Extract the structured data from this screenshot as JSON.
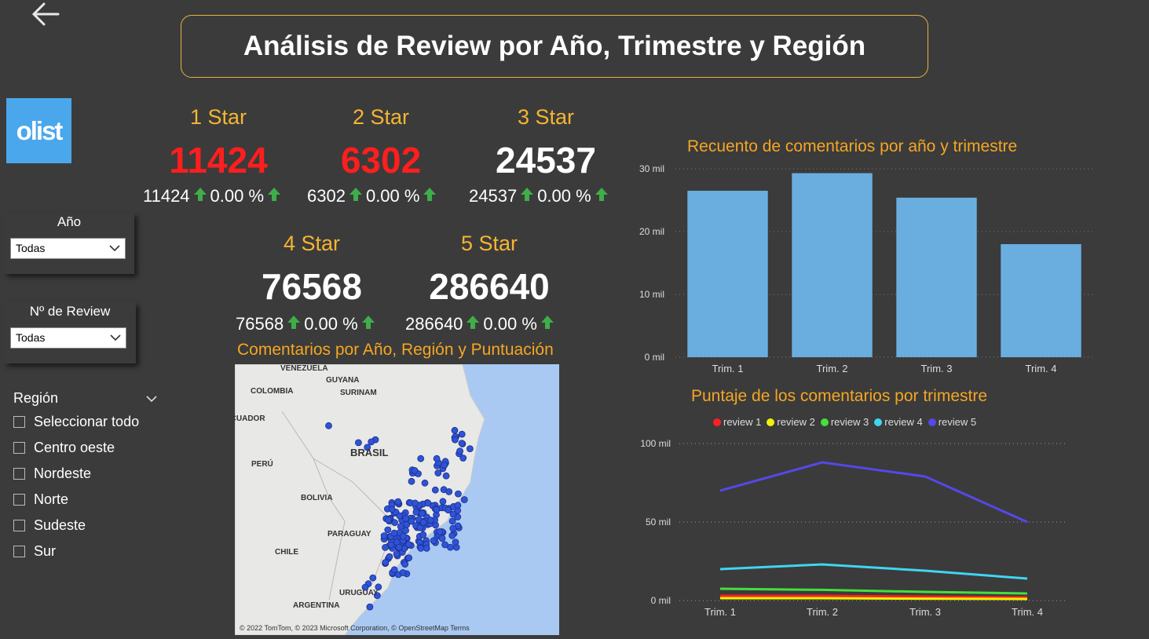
{
  "header": {
    "title": "Análisis de Review por Año, Trimestre y Región"
  },
  "logo": {
    "text": "olist",
    "color": "#4aa7ec"
  },
  "filters": {
    "year": {
      "label": "Año",
      "value": "Todas"
    },
    "review": {
      "label": "Nº de Review",
      "value": "Todas"
    },
    "region": {
      "label": "Región",
      "items": [
        "Seleccionar todo",
        "Centro oeste",
        "Nordeste",
        "Norte",
        "Sudeste",
        "Sur"
      ]
    }
  },
  "kpis": [
    {
      "label": "1 Star",
      "value": "11424",
      "value_color": "#ff1e1e",
      "trend_value": "11424",
      "trend_pct": "0.00 %"
    },
    {
      "label": "2 Star",
      "value": "6302",
      "value_color": "#ff1e1e",
      "trend_value": "6302",
      "trend_pct": "0.00 %"
    },
    {
      "label": "3 Star",
      "value": "24537",
      "value_color": "#ffffff",
      "trend_value": "24537",
      "trend_pct": "0.00 %"
    },
    {
      "label": "4 Star",
      "value": "76568",
      "value_color": "#ffffff",
      "trend_value": "76568",
      "trend_pct": "0.00 %"
    },
    {
      "label": "5 Star",
      "value": "286640",
      "value_color": "#ffffff",
      "trend_value": "286640",
      "trend_pct": "0.00 %"
    }
  ],
  "map": {
    "title": "Comentarios por Año, Región y Puntuación",
    "labels": [
      "VENEZUELA",
      "GUYANA",
      "SURINAM",
      "COLOMBIA",
      "ECUADOR",
      "BRASIL",
      "PERÚ",
      "BOLIVIA",
      "PARAGUAY",
      "CHILE",
      "URUGUAY",
      "ARGENTINA"
    ],
    "credit": "© 2022 TomTom, © 2023 Microsoft Corporation, © OpenStreetMap  Terms"
  },
  "chart_data": [
    {
      "type": "bar",
      "title": "Recuento de comentarios por año y trimestre",
      "categories": [
        "Trim. 1",
        "Trim. 2",
        "Trim. 3",
        "Trim. 4"
      ],
      "values": [
        26500,
        29300,
        25400,
        18000
      ],
      "ylim": [
        0,
        30000
      ],
      "yticks": [
        "0 mil",
        "10 mil",
        "20 mil",
        "30 mil"
      ],
      "color": "#6aaee0",
      "grid": true
    },
    {
      "type": "line",
      "title": "Puntaje de los comentarios por trimestre",
      "categories": [
        "Trim. 1",
        "Trim. 2",
        "Trim. 3",
        "Trim. 4"
      ],
      "ylim": [
        0,
        100000
      ],
      "yticks": [
        "0 mil",
        "50 mil",
        "100 mil"
      ],
      "legend_position": "top",
      "series": [
        {
          "name": "review 1",
          "color": "#ff2020",
          "values": [
            3000,
            3000,
            2500,
            2000
          ]
        },
        {
          "name": "review 2",
          "color": "#f2f200",
          "values": [
            1500,
            1500,
            1200,
            1000
          ]
        },
        {
          "name": "review 3",
          "color": "#44e03c",
          "values": [
            7500,
            6800,
            5500,
            4500
          ]
        },
        {
          "name": "review 4",
          "color": "#3fd6f0",
          "values": [
            20000,
            23000,
            19000,
            14000
          ]
        },
        {
          "name": "review 5",
          "color": "#5548e8",
          "values": [
            70000,
            88000,
            79000,
            50000
          ]
        }
      ]
    }
  ]
}
